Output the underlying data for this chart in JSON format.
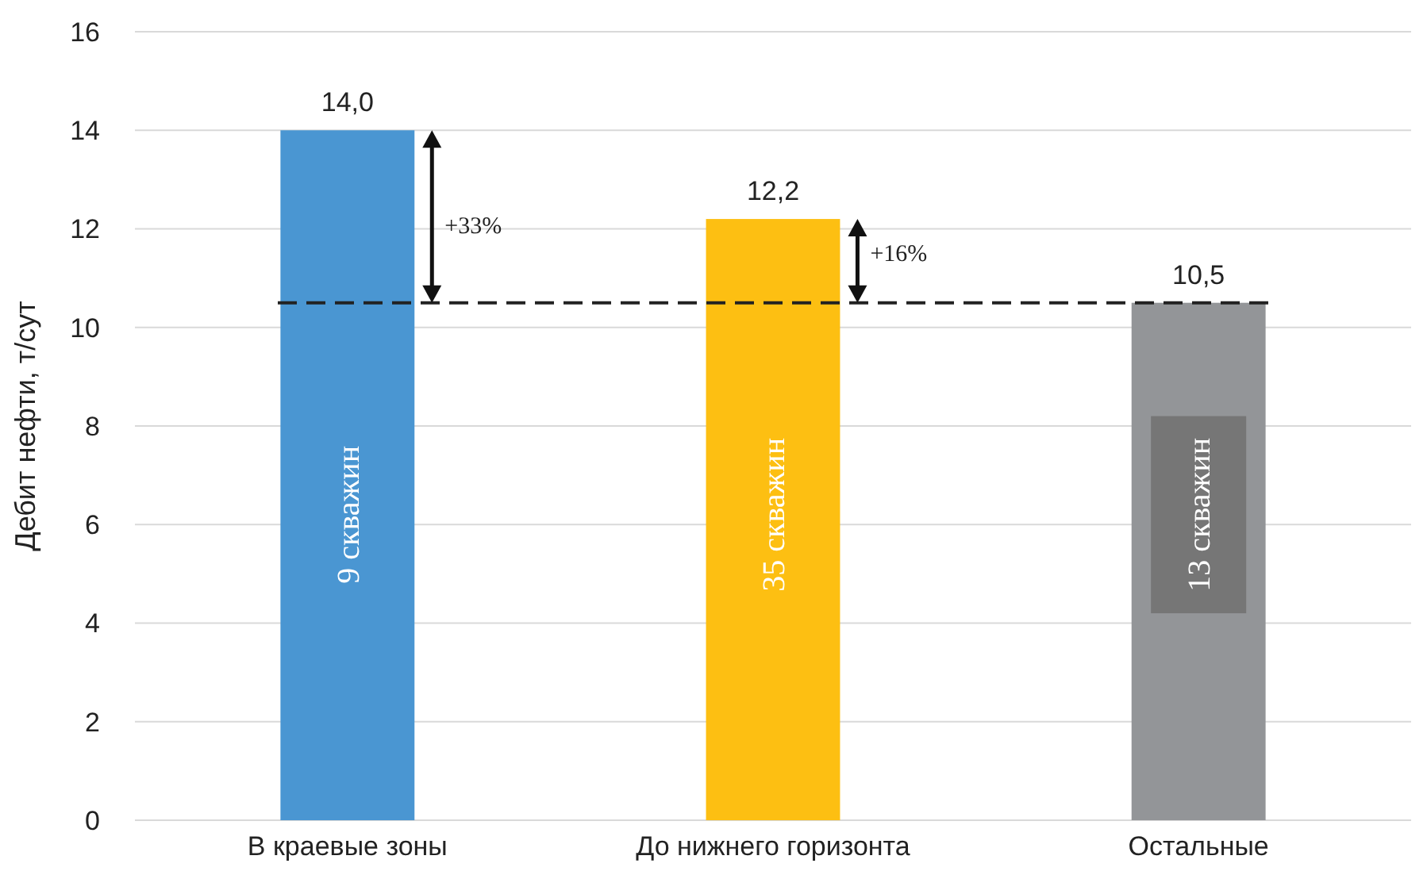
{
  "chart_data": {
    "type": "bar",
    "ylabel": "Дебит нефти, т/сут",
    "categories": [
      "В краевые зоны",
      "До нижнего горизонта",
      "Остальные"
    ],
    "values": [
      14.0,
      12.2,
      10.5
    ],
    "colors": [
      "#4a96d2",
      "#fdbf12",
      "#939598"
    ],
    "value_labels": [
      "14,0",
      "12,2",
      "10,5"
    ],
    "ylim": [
      0,
      16
    ],
    "yticks": [
      0,
      2,
      4,
      6,
      8,
      10,
      12,
      14,
      16
    ],
    "grid": "y",
    "ref_lines": [
      {
        "axis": "y",
        "value": 10.5,
        "color": "#222222",
        "line_style": "dashed"
      }
    ],
    "annotations": [
      "+33%",
      "+16%",
      "9 скважин",
      "35 скважин",
      "13 скважин"
    ]
  }
}
